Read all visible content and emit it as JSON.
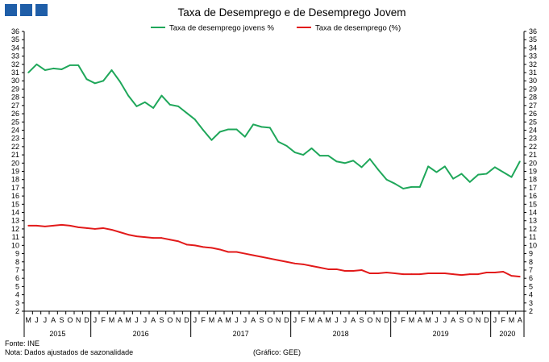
{
  "header": {
    "logo_name": "organization-logo"
  },
  "chart_data": {
    "type": "line",
    "title": "Taxa de Desemprego e de Desemprego Jovem",
    "xlabel": "",
    "ylabel": "",
    "ylim": [
      2,
      36
    ],
    "grid": false,
    "legend_position": "top-center",
    "month_labels": [
      "M",
      "J",
      "J",
      "A",
      "S",
      "O",
      "N",
      "D",
      "J",
      "F",
      "M",
      "A",
      "M",
      "J",
      "J",
      "A",
      "S",
      "O",
      "N",
      "D",
      "J",
      "F",
      "M",
      "A",
      "M",
      "J",
      "J",
      "A",
      "S",
      "O",
      "N",
      "D",
      "J",
      "F",
      "M",
      "A",
      "M",
      "J",
      "J",
      "A",
      "S",
      "O",
      "N",
      "D",
      "J",
      "F",
      "M",
      "A",
      "M",
      "J",
      "J",
      "A",
      "S",
      "O",
      "N",
      "D",
      "J",
      "F",
      "M",
      "A"
    ],
    "years": [
      {
        "label": "2015",
        "start": 0,
        "end": 7
      },
      {
        "label": "2016",
        "start": 8,
        "end": 19
      },
      {
        "label": "2017",
        "start": 20,
        "end": 31
      },
      {
        "label": "2018",
        "start": 32,
        "end": 43
      },
      {
        "label": "2019",
        "start": 44,
        "end": 55
      },
      {
        "label": "2020",
        "start": 56,
        "end": 59
      }
    ],
    "x_range": [
      "2015-05",
      "2020-04"
    ],
    "series": [
      {
        "name": "Taxa de desemprego jovens %",
        "color": "#1fa75a",
        "values": [
          31.0,
          32.0,
          31.3,
          31.5,
          31.4,
          31.9,
          31.9,
          30.2,
          29.7,
          30.0,
          31.3,
          29.9,
          28.2,
          26.9,
          27.4,
          26.7,
          28.2,
          27.1,
          26.9,
          26.1,
          25.3,
          24.0,
          22.8,
          23.8,
          24.1,
          24.1,
          23.2,
          24.7,
          24.4,
          24.3,
          22.6,
          22.1,
          21.3,
          21.0,
          21.8,
          20.9,
          20.9,
          20.2,
          20.0,
          20.3,
          19.5,
          20.5,
          19.2,
          18.0,
          17.5,
          16.9,
          17.1,
          17.1,
          19.6,
          18.9,
          19.6,
          18.1,
          18.7,
          17.7,
          18.6,
          18.7,
          19.5,
          18.9,
          18.3,
          20.2
        ]
      },
      {
        "name": "Taxa de desemprego (%)",
        "color": "#e21a1a",
        "values": [
          12.4,
          12.4,
          12.3,
          12.4,
          12.5,
          12.4,
          12.2,
          12.1,
          12.0,
          12.1,
          11.9,
          11.6,
          11.3,
          11.1,
          11.0,
          10.9,
          10.9,
          10.7,
          10.5,
          10.1,
          10.0,
          9.8,
          9.7,
          9.5,
          9.2,
          9.2,
          9.0,
          8.8,
          8.6,
          8.4,
          8.2,
          8.0,
          7.8,
          7.7,
          7.5,
          7.3,
          7.1,
          7.1,
          6.9,
          6.9,
          7.0,
          6.6,
          6.6,
          6.7,
          6.6,
          6.5,
          6.5,
          6.5,
          6.6,
          6.6,
          6.6,
          6.5,
          6.4,
          6.5,
          6.5,
          6.7,
          6.7,
          6.8,
          6.3,
          6.2
        ]
      }
    ]
  },
  "footer": {
    "source": "Fonte: INE",
    "note": "Nota: Dados ajustados de sazonalidade",
    "credit": "(Gráfico: GEE)"
  }
}
